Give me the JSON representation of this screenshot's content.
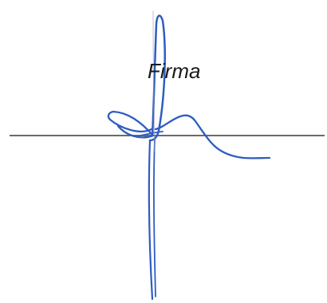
{
  "signature_block": {
    "label": "Firma",
    "line_color": "#6b6b6b",
    "ink_color": "#2f5cc2"
  }
}
